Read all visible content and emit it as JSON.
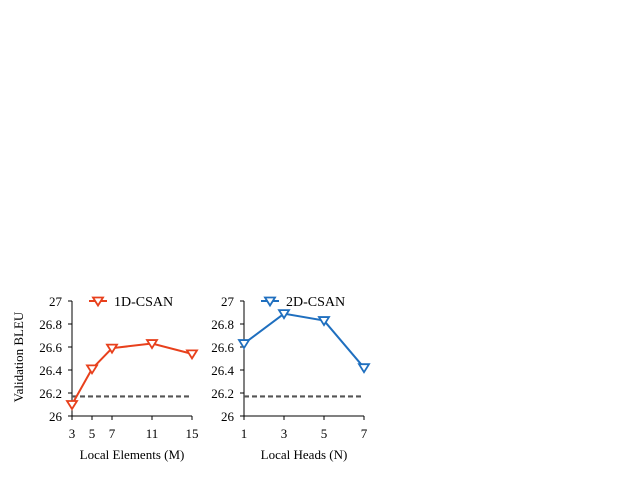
{
  "figure": {
    "ylabel": "Validation BLEU"
  },
  "chart_data": [
    {
      "type": "line",
      "xlabel": "Local Elements (M)",
      "ylabel": "Validation BLEU",
      "x": [
        3,
        5,
        7,
        11,
        15
      ],
      "x_ticks": [
        "3",
        "5",
        "7",
        "11",
        "15"
      ],
      "ylim": [
        26,
        27
      ],
      "y_ticks": [
        "26",
        "26.2",
        "26.4",
        "26.6",
        "26.8",
        "27"
      ],
      "series": [
        {
          "name": "1D-CSAN",
          "color": "#e8401c",
          "marker": "down-triangle",
          "values": [
            26.1,
            26.41,
            26.59,
            26.63,
            26.54
          ]
        }
      ],
      "baseline": {
        "value": 26.17,
        "style": "dashed",
        "color": "#555555"
      },
      "legend": "top-left",
      "grid": false
    },
    {
      "type": "line",
      "xlabel": "Local Heads (N)",
      "ylabel": "",
      "x": [
        1,
        3,
        5,
        7
      ],
      "x_ticks": [
        "1",
        "3",
        "5",
        "7"
      ],
      "ylim": [
        26,
        27
      ],
      "y_ticks": [
        "26",
        "26.2",
        "26.4",
        "26.6",
        "26.8",
        "27"
      ],
      "series": [
        {
          "name": "2D-CSAN",
          "color": "#1f6fbf",
          "marker": "down-triangle",
          "values": [
            26.63,
            26.89,
            26.83,
            26.42
          ]
        }
      ],
      "baseline": {
        "value": 26.17,
        "style": "dashed",
        "color": "#555555"
      },
      "legend": "top-left",
      "grid": false
    }
  ]
}
